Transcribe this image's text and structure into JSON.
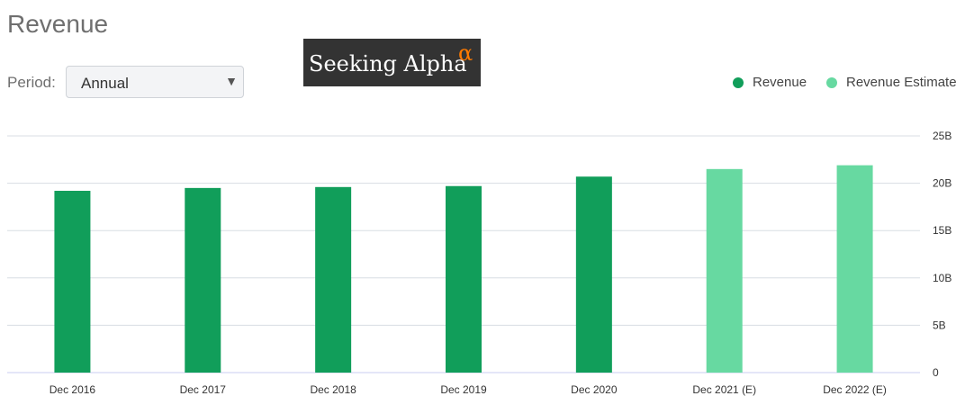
{
  "header": {
    "title": "Revenue"
  },
  "period": {
    "label": "Period:",
    "selected": "Annual",
    "caret": "▼"
  },
  "logo": {
    "text": "Seeking Alpha",
    "symbol": "α"
  },
  "colors": {
    "revenue": "#119e5a",
    "estimate": "#67d9a1",
    "grid": "#d8dde3"
  },
  "legend": [
    {
      "label": "Revenue",
      "color": "#119e5a"
    },
    {
      "label": "Revenue Estimate",
      "color": "#67d9a1"
    }
  ],
  "chart_data": {
    "type": "bar",
    "categories": [
      "Dec 2016",
      "Dec 2017",
      "Dec 2018",
      "Dec 2019",
      "Dec 2020",
      "Dec 2021 (E)",
      "Dec 2022 (E)"
    ],
    "series": [
      {
        "name": "Revenue",
        "values": [
          19.2,
          19.5,
          19.6,
          19.7,
          20.7,
          null,
          null
        ]
      },
      {
        "name": "Revenue Estimate",
        "values": [
          null,
          null,
          null,
          null,
          null,
          21.5,
          21.9
        ]
      }
    ],
    "yticks": [
      "0",
      "5B",
      "10B",
      "15B",
      "20B",
      "25B"
    ],
    "ylim": [
      0,
      25
    ],
    "grid": true,
    "legend_position": "top-right"
  }
}
